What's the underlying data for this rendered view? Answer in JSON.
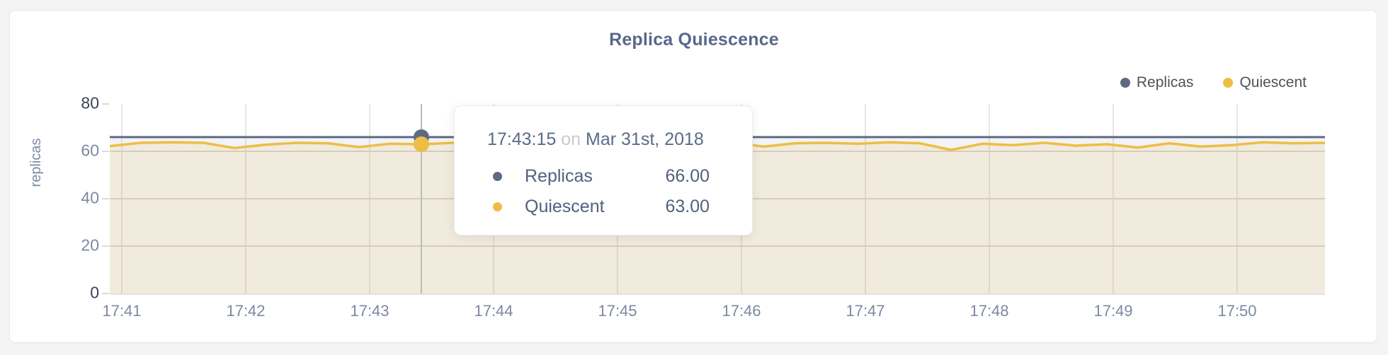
{
  "card": {
    "background": "#ffffff"
  },
  "colors": {
    "accent_slate": "#5e6a84",
    "accent_yellow": "#eebd45",
    "title": "#57688a",
    "axis_text": "#7d88a1",
    "axis_text_dark": "#394258",
    "grid_vertical": "#e8e7e4",
    "grid_horizontal": "#ddd9d0",
    "crosshair": "#bcbcba"
  },
  "legend": {
    "items": [
      {
        "label": "Replicas",
        "color": "#5e6a84"
      },
      {
        "label": "Quiescent",
        "color": "#eebd45"
      }
    ]
  },
  "tooltip": {
    "time": "17:43:15",
    "conjunction": "on",
    "date": "Mar 31st, 2018",
    "rows": [
      {
        "label": "Replicas",
        "value": "66.00",
        "color": "#5e6a84"
      },
      {
        "label": "Quiescent",
        "value": "63.00",
        "color": "#eebd45"
      }
    ]
  },
  "chart_data": {
    "type": "line",
    "title": "Replica Quiescence",
    "xlabel": "",
    "ylabel": "replicas",
    "ylim": [
      0,
      80
    ],
    "yticks": [
      0,
      20,
      40,
      60,
      80
    ],
    "xticks": [
      "17:41",
      "17:42",
      "17:43",
      "17:44",
      "17:45",
      "17:46",
      "17:47",
      "17:48",
      "17:49",
      "17:50"
    ],
    "grid": true,
    "legend_position": "top-right",
    "series": [
      {
        "name": "Replicas",
        "color": "#5e6a84",
        "fill_opacity": 0.08,
        "values": [
          66,
          66,
          66,
          66,
          66,
          66,
          66,
          66,
          66,
          66,
          66,
          66,
          66,
          66,
          66,
          66,
          66,
          66,
          66,
          66,
          66,
          66,
          66,
          66,
          66,
          66,
          66,
          66,
          66,
          66,
          66,
          66,
          66,
          66,
          66,
          66,
          66,
          66,
          66,
          66
        ]
      },
      {
        "name": "Quiescent",
        "color": "#eebd45",
        "fill_opacity": 0.13,
        "values": [
          62.2,
          63.6,
          63.8,
          63.6,
          61.4,
          62.8,
          63.6,
          63.4,
          61.8,
          63.2,
          63,
          63.6,
          62.4,
          63.6,
          63.2,
          63.8,
          62.2,
          63.4,
          63.6,
          63,
          63.6,
          62,
          63.4,
          63.6,
          63.2,
          63.8,
          63.4,
          60.6,
          63.2,
          62.6,
          63.6,
          62.4,
          63,
          61.6,
          63.4,
          62,
          62.6,
          63.8,
          63.4,
          63.6
        ]
      }
    ],
    "highlight": {
      "index": 10,
      "time": "17:43:15",
      "date": "Mar 31st, 2018",
      "replicas_value": 66,
      "quiescent_value": 63
    }
  }
}
